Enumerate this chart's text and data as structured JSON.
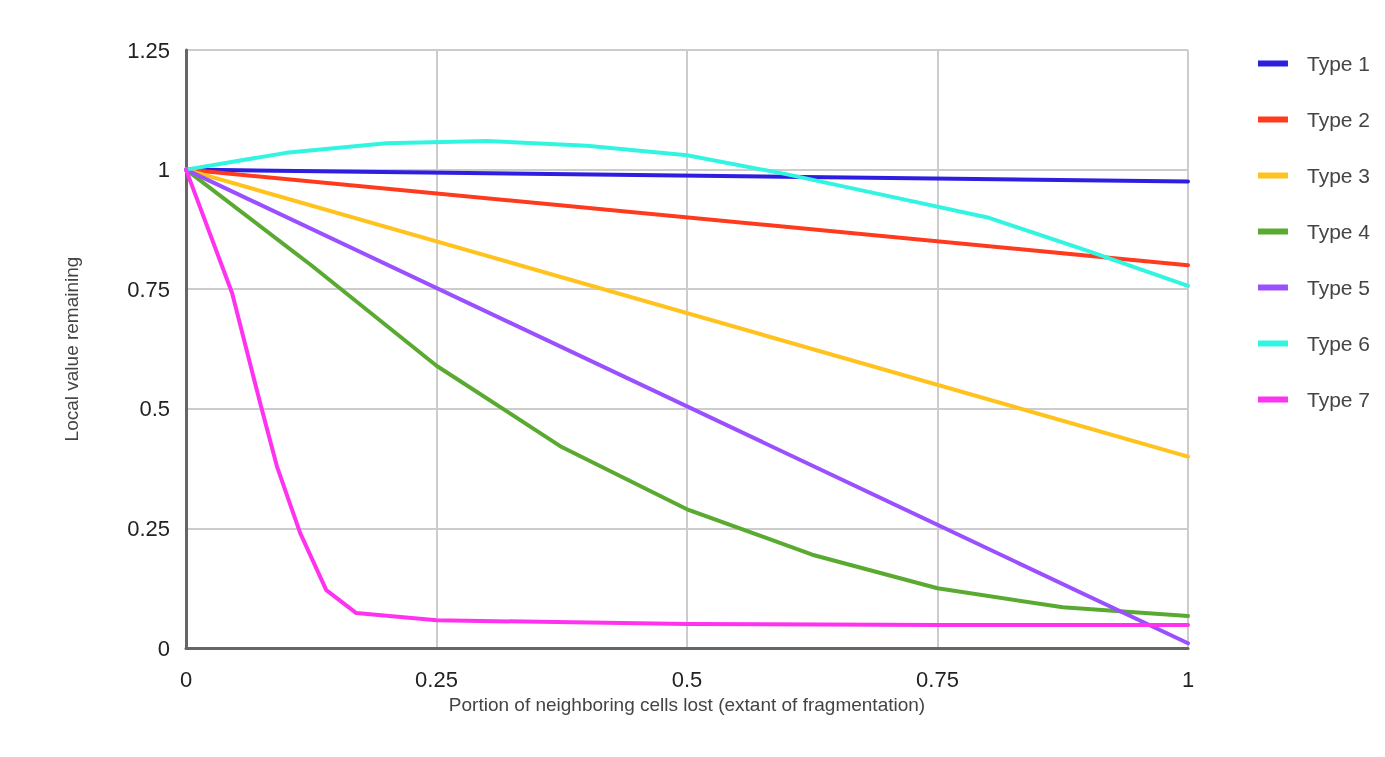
{
  "chart_data": {
    "type": "line",
    "xlabel": "Portion of neighboring cells lost (extant of fragmentation)",
    "ylabel": "Local value remaining",
    "xlim": [
      0,
      1
    ],
    "ylim": [
      0,
      1.25
    ],
    "xticks": [
      0,
      0.25,
      0.5,
      0.75,
      1
    ],
    "yticks": [
      0,
      0.25,
      0.5,
      0.75,
      1,
      1.25
    ],
    "grid": true,
    "legend": "right",
    "marker": "none",
    "line_style": "solid",
    "series": [
      {
        "name": "Type 1",
        "color": "#2e1ee0",
        "x": [
          0,
          1
        ],
        "values": [
          1,
          0.975
        ]
      },
      {
        "name": "Type 2",
        "color": "#ff3a1e",
        "x": [
          0,
          1
        ],
        "values": [
          1,
          0.8
        ]
      },
      {
        "name": "Type 3",
        "color": "#ffc21e",
        "x": [
          0,
          1
        ],
        "values": [
          1,
          0.4
        ]
      },
      {
        "name": "Type 4",
        "color": "#5aaa32",
        "x": [
          0,
          0.125,
          0.25,
          0.375,
          0.5,
          0.625,
          0.75,
          0.875,
          1
        ],
        "values": [
          1,
          0.8,
          0.59,
          0.42,
          0.29,
          0.195,
          0.125,
          0.085,
          0.067
        ]
      },
      {
        "name": "Type 5",
        "color": "#9b50ff",
        "x": [
          0,
          1
        ],
        "values": [
          1,
          0.01
        ]
      },
      {
        "name": "Type 6",
        "color": "#32f5e1",
        "x": [
          0,
          0.1,
          0.2,
          0.3,
          0.4,
          0.5,
          0.6,
          0.7,
          0.8,
          0.9,
          1
        ],
        "values": [
          1,
          1.035,
          1.055,
          1.06,
          1.05,
          1.03,
          0.99,
          0.945,
          0.9,
          0.83,
          0.757
        ]
      },
      {
        "name": "Type 7",
        "color": "#ff32f0",
        "x": [
          0,
          0.046,
          0.074,
          0.091,
          0.114,
          0.14,
          0.17,
          0.25,
          0.5,
          0.75,
          1
        ],
        "values": [
          1,
          0.742,
          0.512,
          0.378,
          0.24,
          0.121,
          0.073,
          0.058,
          0.05,
          0.048,
          0.048
        ]
      }
    ]
  }
}
